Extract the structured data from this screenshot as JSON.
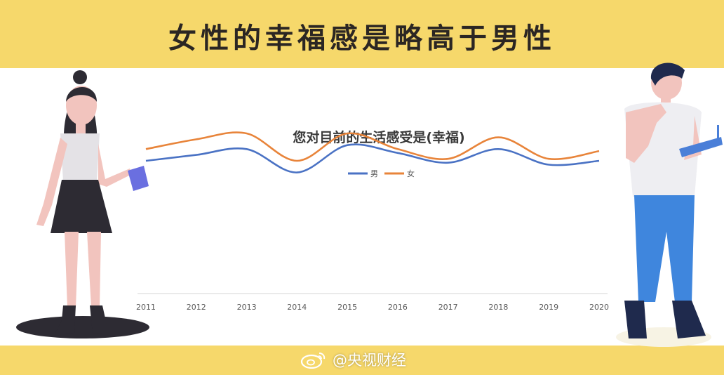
{
  "header": {
    "title": "女性的幸福感是略高于男性"
  },
  "watermark": {
    "text": "@央视财经",
    "icon": "weibo-icon"
  },
  "illustrations": {
    "left": "woman-figure",
    "right": "man-figure"
  },
  "colors": {
    "banner": "#f6d86b",
    "male": "#4a72c4",
    "female": "#e8843a"
  },
  "chart_data": {
    "type": "line",
    "title": "您对目前的生活感受是(幸福)",
    "legend_position": "top",
    "grid": false,
    "categories": [
      "2011",
      "2012",
      "2013",
      "2014",
      "2015",
      "2016",
      "2017",
      "2018",
      "2019",
      "2020"
    ],
    "ylim": [
      0,
      100
    ],
    "series": [
      {
        "name": "男",
        "color": "#4a72c4",
        "values": [
          68,
          71,
          74,
          62,
          76,
          72,
          67,
          74,
          66,
          68
        ]
      },
      {
        "name": "女",
        "color": "#e8843a",
        "values": [
          74,
          79,
          82,
          68,
          82,
          74,
          69,
          80,
          69,
          73
        ]
      }
    ]
  }
}
